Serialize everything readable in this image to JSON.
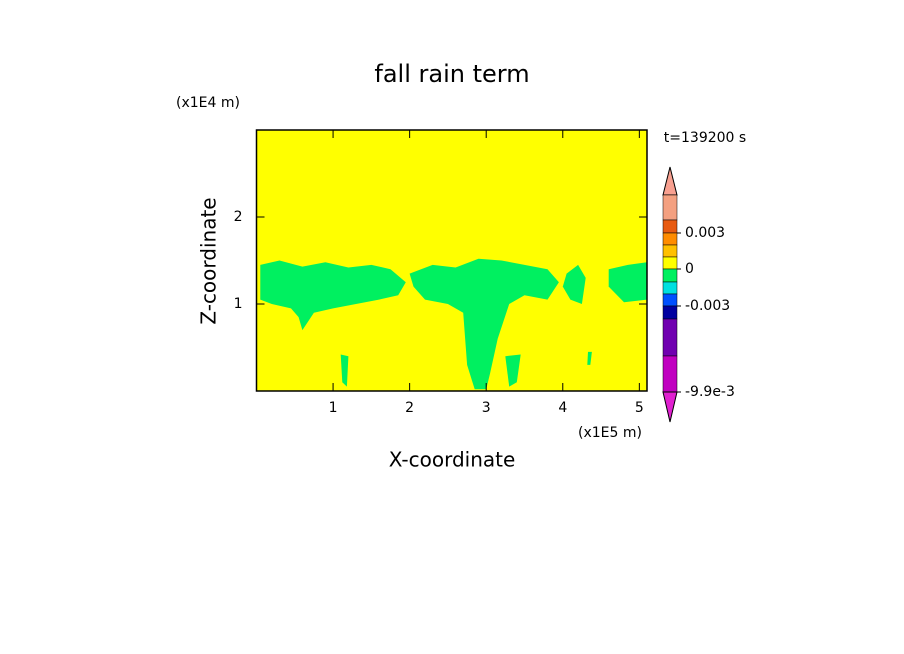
{
  "chart_data": {
    "type": "contour",
    "title": "fall rain term",
    "x_label": "X-coordinate",
    "y_label": "Z-coordinate",
    "x_unit": "(x1E5 m)",
    "y_unit": "(x1E4 m)",
    "annotation": "t=139200 s",
    "xlim": [
      0,
      5.1
    ],
    "ylim": [
      0,
      3
    ],
    "xticks": [
      1,
      2,
      3,
      4,
      5
    ],
    "yticks": [
      1,
      2
    ],
    "background_color": "#ffff00",
    "region_color": "#00f060",
    "regions": [
      {
        "x": [
          0.05,
          0.3,
          0.6,
          0.9,
          1.2,
          1.5,
          1.75,
          1.95,
          1.85,
          1.6,
          1.3,
          1.0,
          0.75,
          0.6,
          0.55,
          0.45,
          0.2,
          0.05
        ],
        "z": [
          1.45,
          1.5,
          1.43,
          1.48,
          1.42,
          1.45,
          1.4,
          1.25,
          1.1,
          1.05,
          1.0,
          0.95,
          0.9,
          0.7,
          0.85,
          0.95,
          1.0,
          1.05
        ]
      },
      {
        "x": [
          2.0,
          2.3,
          2.6,
          2.9,
          3.2,
          3.5,
          3.8,
          3.95,
          3.8,
          3.5,
          3.3,
          3.15,
          3.05,
          3.0,
          2.85,
          2.75,
          2.7,
          2.5,
          2.2,
          2.05
        ],
        "z": [
          1.35,
          1.45,
          1.42,
          1.52,
          1.5,
          1.45,
          1.4,
          1.25,
          1.05,
          1.1,
          1.0,
          0.6,
          0.2,
          0.02,
          0.02,
          0.3,
          0.9,
          1.0,
          1.05,
          1.2
        ]
      },
      {
        "x": [
          4.05,
          4.2,
          4.3,
          4.25,
          4.1,
          4.0
        ],
        "z": [
          1.35,
          1.45,
          1.3,
          1.0,
          1.05,
          1.2
        ]
      },
      {
        "x": [
          4.6,
          4.85,
          5.1,
          5.1,
          4.8,
          4.6
        ],
        "z": [
          1.4,
          1.45,
          1.48,
          1.05,
          1.02,
          1.2
        ]
      },
      {
        "x": [
          1.1,
          1.2,
          1.18,
          1.12
        ],
        "z": [
          0.42,
          0.4,
          0.05,
          0.1
        ]
      },
      {
        "x": [
          3.25,
          3.45,
          3.4,
          3.3
        ],
        "z": [
          0.4,
          0.42,
          0.1,
          0.05
        ]
      },
      {
        "x": [
          4.33,
          4.38,
          4.36,
          4.32
        ],
        "z": [
          0.45,
          0.45,
          0.3,
          0.3
        ]
      }
    ],
    "colorbar": {
      "top_color": "#f8a090",
      "bottom_color": "#e020d0",
      "colors": [
        "#f4a080",
        "#e85a10",
        "#ff8c00",
        "#ffc000",
        "#ffff00",
        "#00f060",
        "#00e0e0",
        "#0050ff",
        "#0000a0",
        "#7000b0",
        "#c000c0"
      ],
      "ticks": [
        0.003,
        0,
        -0.003,
        {
          "value": -0.0099,
          "label": "-9.9e-3"
        }
      ]
    }
  }
}
